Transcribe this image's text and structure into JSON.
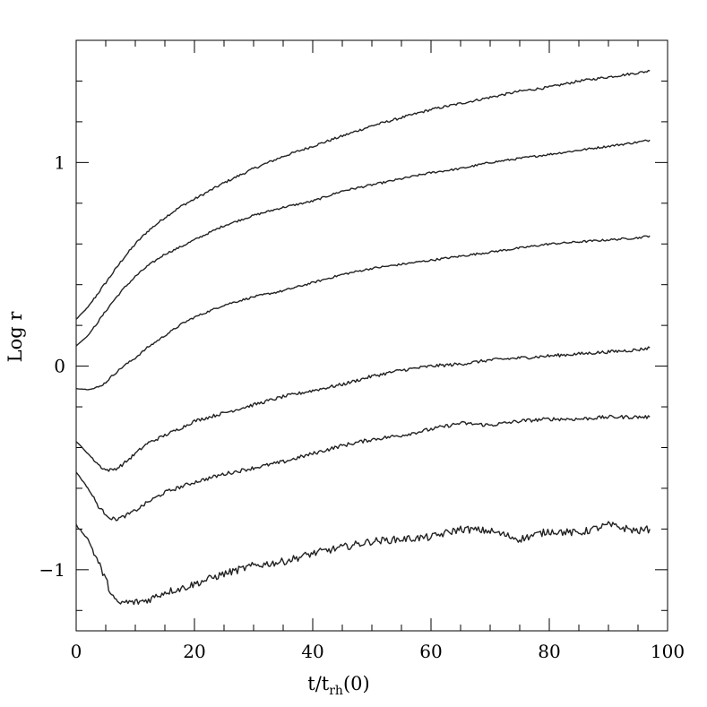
{
  "chart_data": {
    "type": "line",
    "title": "",
    "xlabel": "t/t_rh(0)",
    "xlabel_main": "t/t",
    "xlabel_sub": "rh",
    "xlabel_tail": "(0)",
    "ylabel": "Log r",
    "xlim": [
      0,
      100
    ],
    "ylim": [
      -1.3,
      1.6
    ],
    "xticks": [
      0,
      20,
      40,
      60,
      80,
      100
    ],
    "xtick_labels": [
      "0",
      "20",
      "40",
      "60",
      "80",
      "100"
    ],
    "yticks": [
      -1,
      0,
      1
    ],
    "ytick_labels": [
      "−1",
      "0",
      "1"
    ],
    "x_minor_step": 5,
    "y_minor_step": 0.2,
    "series": [
      {
        "name": "curve-1",
        "noise": 0.006,
        "x": [
          0,
          2,
          4,
          6,
          8,
          10,
          12,
          15,
          18,
          20,
          25,
          30,
          35,
          40,
          45,
          50,
          55,
          60,
          65,
          70,
          75,
          80,
          85,
          90,
          95,
          97
        ],
        "values": [
          0.23,
          0.29,
          0.37,
          0.45,
          0.53,
          0.6,
          0.66,
          0.73,
          0.79,
          0.82,
          0.9,
          0.97,
          1.03,
          1.08,
          1.13,
          1.18,
          1.22,
          1.26,
          1.29,
          1.32,
          1.35,
          1.37,
          1.4,
          1.42,
          1.44,
          1.45
        ]
      },
      {
        "name": "curve-2",
        "noise": 0.005,
        "x": [
          0,
          2,
          4,
          6,
          8,
          10,
          12,
          15,
          18,
          20,
          25,
          30,
          35,
          40,
          45,
          50,
          55,
          60,
          65,
          70,
          75,
          80,
          85,
          90,
          95,
          97
        ],
        "values": [
          0.1,
          0.15,
          0.23,
          0.31,
          0.38,
          0.44,
          0.49,
          0.55,
          0.59,
          0.62,
          0.69,
          0.74,
          0.78,
          0.81,
          0.86,
          0.89,
          0.92,
          0.95,
          0.97,
          1.0,
          1.02,
          1.04,
          1.06,
          1.08,
          1.1,
          1.11
        ]
      },
      {
        "name": "curve-3",
        "noise": 0.005,
        "x": [
          0,
          2,
          3,
          4,
          5,
          6,
          8,
          10,
          12,
          15,
          18,
          20,
          25,
          30,
          35,
          40,
          45,
          50,
          55,
          60,
          65,
          70,
          75,
          80,
          85,
          90,
          95,
          97
        ],
        "values": [
          -0.11,
          -0.115,
          -0.11,
          -0.1,
          -0.08,
          -0.05,
          0.0,
          0.04,
          0.09,
          0.15,
          0.21,
          0.24,
          0.3,
          0.34,
          0.37,
          0.41,
          0.45,
          0.48,
          0.5,
          0.52,
          0.54,
          0.56,
          0.58,
          0.6,
          0.61,
          0.62,
          0.63,
          0.64
        ]
      },
      {
        "name": "curve-4",
        "noise": 0.008,
        "x": [
          0,
          2,
          4,
          5,
          6,
          7,
          8,
          10,
          12,
          15,
          18,
          20,
          25,
          30,
          35,
          40,
          45,
          50,
          55,
          60,
          65,
          70,
          75,
          80,
          85,
          90,
          95,
          97
        ],
        "values": [
          -0.37,
          -0.43,
          -0.49,
          -0.51,
          -0.51,
          -0.5,
          -0.48,
          -0.43,
          -0.38,
          -0.34,
          -0.3,
          -0.27,
          -0.23,
          -0.19,
          -0.15,
          -0.12,
          -0.09,
          -0.05,
          -0.02,
          0.0,
          0.01,
          0.03,
          0.04,
          0.05,
          0.06,
          0.07,
          0.08,
          0.09
        ]
      },
      {
        "name": "curve-5",
        "noise": 0.009,
        "x": [
          0,
          2,
          4,
          6,
          7,
          8,
          10,
          12,
          15,
          18,
          20,
          25,
          30,
          35,
          40,
          45,
          50,
          55,
          60,
          65,
          70,
          75,
          80,
          85,
          90,
          95,
          97
        ],
        "values": [
          -0.52,
          -0.6,
          -0.7,
          -0.75,
          -0.75,
          -0.74,
          -0.71,
          -0.67,
          -0.62,
          -0.59,
          -0.57,
          -0.53,
          -0.5,
          -0.47,
          -0.43,
          -0.39,
          -0.36,
          -0.34,
          -0.31,
          -0.28,
          -0.29,
          -0.27,
          -0.26,
          -0.26,
          -0.25,
          -0.25,
          -0.25
        ]
      },
      {
        "name": "curve-6",
        "noise": 0.018,
        "x": [
          0,
          2,
          4,
          6,
          7,
          8,
          10,
          12,
          15,
          18,
          20,
          25,
          30,
          35,
          40,
          45,
          50,
          55,
          60,
          65,
          70,
          75,
          80,
          85,
          90,
          95,
          97
        ],
        "values": [
          -0.78,
          -0.85,
          -0.98,
          -1.12,
          -1.17,
          -1.16,
          -1.16,
          -1.15,
          -1.11,
          -1.09,
          -1.07,
          -1.02,
          -0.98,
          -0.96,
          -0.92,
          -0.89,
          -0.86,
          -0.85,
          -0.84,
          -0.8,
          -0.81,
          -0.85,
          -0.81,
          -0.82,
          -0.78,
          -0.81,
          -0.8
        ]
      }
    ]
  }
}
